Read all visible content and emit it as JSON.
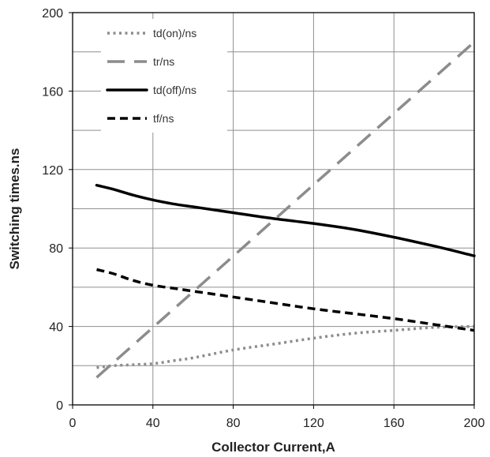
{
  "chart_data": {
    "type": "line",
    "xlabel": "Collector Current,A",
    "ylabel": "Switching times.ns",
    "xlim": [
      0,
      200
    ],
    "ylim": [
      0,
      200
    ],
    "xticks": [
      0,
      40,
      80,
      120,
      160,
      200
    ],
    "yticks": [
      0,
      40,
      80,
      120,
      160,
      200
    ],
    "grid": true,
    "legend_position": "top-left",
    "series": [
      {
        "name": "td(on)/ns",
        "style": "dotted",
        "color": "#8c8c8c",
        "x": [
          12,
          20,
          30,
          40,
          50,
          60,
          80,
          100,
          120,
          140,
          160,
          180,
          200
        ],
        "y": [
          19,
          20,
          20.5,
          21,
          22.5,
          24,
          28,
          31,
          34,
          36.5,
          38,
          39.5,
          40
        ]
      },
      {
        "name": "tr/ns",
        "style": "long-dash",
        "color": "#8c8c8c",
        "x": [
          12,
          200
        ],
        "y": [
          14,
          185
        ]
      },
      {
        "name": "td(off)/ns",
        "style": "solid",
        "color": "#000000",
        "x": [
          12,
          20,
          30,
          40,
          50,
          60,
          80,
          100,
          120,
          140,
          160,
          180,
          200
        ],
        "y": [
          112,
          110,
          107,
          104.5,
          102.5,
          101,
          98,
          95,
          92.5,
          89.5,
          85.5,
          81,
          76
        ]
      },
      {
        "name": "tf/ns",
        "style": "dashed",
        "color": "#000000",
        "x": [
          12,
          20,
          30,
          40,
          50,
          60,
          80,
          100,
          120,
          140,
          160,
          180,
          200
        ],
        "y": [
          69,
          67,
          63.5,
          61,
          59.5,
          58,
          55,
          52,
          49,
          46.5,
          44,
          41,
          38
        ]
      }
    ]
  }
}
